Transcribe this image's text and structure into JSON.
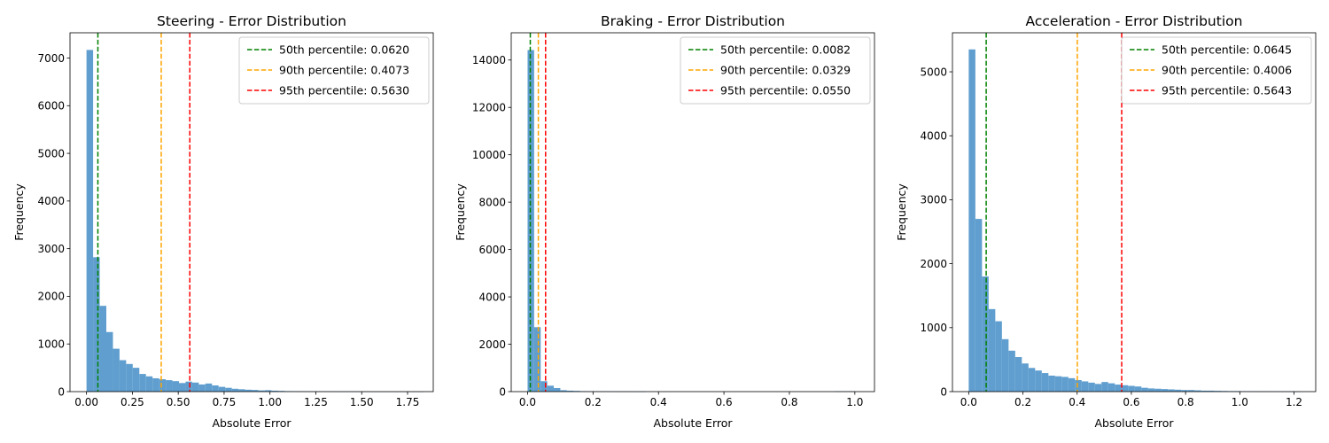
{
  "chart_data": [
    {
      "type": "histogram",
      "title": "Steering - Error Distribution",
      "xlabel": "Absolute Error",
      "ylabel": "Frequency",
      "xlim": [
        -0.09,
        1.89
      ],
      "ylim": [
        0,
        7530
      ],
      "xticks": [
        0.0,
        0.25,
        0.5,
        0.75,
        1.0,
        1.25,
        1.5,
        1.75
      ],
      "xtick_labels": [
        "0.00",
        "0.25",
        "0.50",
        "0.75",
        "1.00",
        "1.25",
        "1.50",
        "1.75"
      ],
      "yticks": [
        0,
        1000,
        2000,
        3000,
        4000,
        5000,
        6000,
        7000
      ],
      "ytick_labels": [
        "0",
        "1000",
        "2000",
        "3000",
        "4000",
        "5000",
        "6000",
        "7000"
      ],
      "bin_start": 0.0,
      "bin_width": 0.036,
      "values": [
        7170,
        2820,
        1800,
        1250,
        900,
        660,
        580,
        500,
        370,
        320,
        280,
        260,
        240,
        220,
        180,
        210,
        190,
        150,
        170,
        130,
        100,
        80,
        60,
        50,
        40,
        35,
        25,
        30,
        20,
        15,
        10,
        8,
        6,
        5,
        4,
        4,
        3,
        3,
        2,
        2,
        2,
        1,
        1,
        1,
        1,
        1,
        1,
        1,
        1,
        1,
        1
      ],
      "percentiles": [
        {
          "label": "50th percentile: 0.0620",
          "value": 0.062,
          "color": "#008000"
        },
        {
          "label": "90th percentile: 0.4073",
          "value": 0.4073,
          "color": "#ffa500"
        },
        {
          "label": "95th percentile: 0.5630",
          "value": 0.563,
          "color": "#ff0000"
        }
      ],
      "legend_position": "top-right",
      "bar_color": "#5f9ecf"
    },
    {
      "type": "histogram",
      "title": "Braking - Error Distribution",
      "xlabel": "Absolute Error",
      "ylabel": "Frequency",
      "xlim": [
        -0.05,
        1.06
      ],
      "ylim": [
        0,
        15150
      ],
      "xticks": [
        0.0,
        0.2,
        0.4,
        0.6,
        0.8,
        1.0
      ],
      "xtick_labels": [
        "0.0",
        "0.2",
        "0.4",
        "0.6",
        "0.8",
        "1.0"
      ],
      "yticks": [
        0,
        2000,
        4000,
        6000,
        8000,
        10000,
        12000,
        14000
      ],
      "ytick_labels": [
        "0",
        "2000",
        "4000",
        "6000",
        "8000",
        "10000",
        "12000",
        "14000"
      ],
      "bin_start": 0.0,
      "bin_width": 0.02,
      "values": [
        14420,
        2720,
        440,
        250,
        150,
        60,
        40,
        30,
        20,
        15,
        12,
        10,
        8,
        8,
        6,
        6,
        5,
        4,
        0,
        0,
        0,
        0,
        0,
        0,
        0,
        0,
        0,
        0,
        0,
        0,
        0,
        0,
        0,
        0,
        0,
        0,
        0,
        0,
        0,
        0,
        0,
        0,
        0,
        0,
        0,
        0,
        0,
        10,
        15,
        15
      ],
      "percentiles": [
        {
          "label": "50th percentile: 0.0082",
          "value": 0.0082,
          "color": "#008000"
        },
        {
          "label": "90th percentile: 0.0329",
          "value": 0.0329,
          "color": "#ffa500"
        },
        {
          "label": "95th percentile: 0.0550",
          "value": 0.055,
          "color": "#ff0000"
        }
      ],
      "legend_position": "top-right",
      "bar_color": "#5f9ecf"
    },
    {
      "type": "histogram",
      "title": "Acceleration - Error Distribution",
      "xlabel": "Absolute Error",
      "ylabel": "Frequency",
      "xlim": [
        -0.06,
        1.28
      ],
      "ylim": [
        0,
        5610
      ],
      "xticks": [
        0.0,
        0.2,
        0.4,
        0.6,
        0.8,
        1.0,
        1.2
      ],
      "xtick_labels": [
        "0.0",
        "0.2",
        "0.4",
        "0.6",
        "0.8",
        "1.0",
        "1.2"
      ],
      "yticks": [
        0,
        1000,
        2000,
        3000,
        4000,
        5000
      ],
      "ytick_labels": [
        "0",
        "1000",
        "2000",
        "3000",
        "4000",
        "5000"
      ],
      "bin_start": 0.0,
      "bin_width": 0.0245,
      "values": [
        5350,
        2700,
        1800,
        1290,
        1100,
        820,
        640,
        540,
        440,
        370,
        330,
        290,
        250,
        240,
        230,
        210,
        180,
        160,
        140,
        120,
        150,
        130,
        110,
        100,
        90,
        80,
        60,
        50,
        45,
        40,
        35,
        30,
        25,
        25,
        20,
        15,
        15,
        12,
        10,
        8,
        8,
        6,
        5,
        4,
        4,
        3,
        3,
        2,
        2,
        1
      ],
      "percentiles": [
        {
          "label": "50th percentile: 0.0645",
          "value": 0.0645,
          "color": "#008000"
        },
        {
          "label": "90th percentile: 0.4006",
          "value": 0.4006,
          "color": "#ffa500"
        },
        {
          "label": "95th percentile: 0.5643",
          "value": 0.5643,
          "color": "#ff0000"
        }
      ],
      "legend_position": "top-right",
      "bar_color": "#5f9ecf"
    }
  ]
}
